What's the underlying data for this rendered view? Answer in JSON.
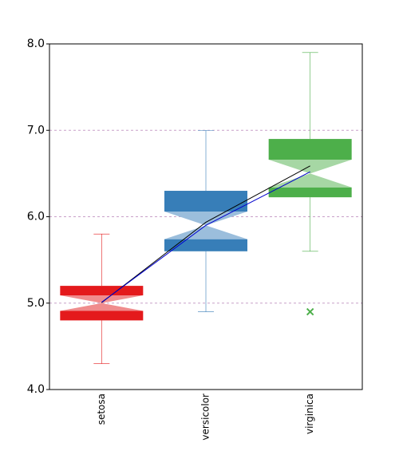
{
  "chart_data": {
    "type": "box",
    "categories": [
      "setosa",
      "versicolor",
      "virginica"
    ],
    "colors": [
      "#e41a1c",
      "#377eb8",
      "#4daf4a"
    ],
    "light_colors": [
      "#f08c8d",
      "#9bbedc",
      "#a6d7a4"
    ],
    "boxes": [
      {
        "whisker_low": 4.3,
        "q1": 4.8,
        "notch_low": 4.91,
        "median": 5.0,
        "notch_high": 5.09,
        "q3": 5.2,
        "whisker_high": 5.8,
        "outliers": []
      },
      {
        "whisker_low": 4.9,
        "q1": 5.6,
        "notch_low": 5.74,
        "median": 5.9,
        "notch_high": 6.06,
        "q3": 6.3,
        "whisker_high": 7.0,
        "outliers": []
      },
      {
        "whisker_low": 5.6,
        "q1": 6.225,
        "notch_low": 6.34,
        "median": 6.5,
        "notch_high": 6.66,
        "q3": 6.9,
        "whisker_high": 7.9,
        "outliers": [
          4.9
        ]
      }
    ],
    "lines": [
      {
        "color": "#000000",
        "values": [
          5.006,
          5.936,
          6.588
        ]
      },
      {
        "color": "#0000cc",
        "values": [
          5.01,
          5.9,
          6.52
        ]
      }
    ],
    "ylim": [
      4,
      8
    ],
    "yticks": [
      {
        "value": 4,
        "label": "4.0"
      },
      {
        "value": 5,
        "label": "5.0"
      },
      {
        "value": 6,
        "label": "6.0"
      },
      {
        "value": 7,
        "label": "7.0"
      },
      {
        "value": 8,
        "label": "8.0"
      }
    ],
    "grid": true
  }
}
